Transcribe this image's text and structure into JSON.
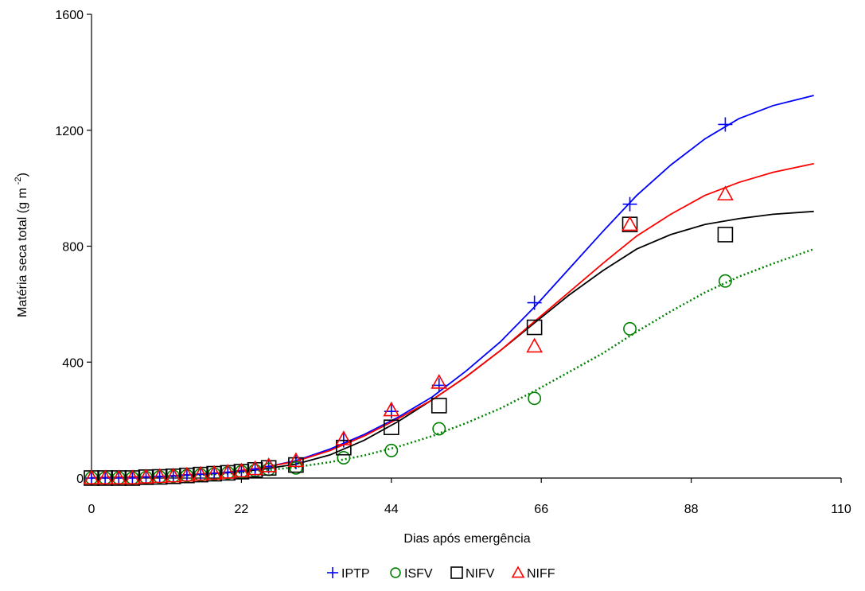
{
  "chart_data": {
    "type": "scatter",
    "xlabel": "Dias após emergência",
    "ylabel": "Matéria seca total (g m",
    "ylabel_sup": "-2",
    "ylabel_close": ")",
    "xlim": [
      0,
      110
    ],
    "ylim": [
      0,
      1600
    ],
    "xticks": [
      0,
      22,
      44,
      66,
      88,
      110
    ],
    "yticks": [
      0,
      400,
      800,
      1200,
      1600
    ],
    "grid": false,
    "legend_position": "bottom-center",
    "series": [
      {
        "name": "IPTP",
        "color": "#0000ff",
        "marker": "plus",
        "line_style": "solid",
        "points": [
          [
            0,
            0
          ],
          [
            2,
            0
          ],
          [
            4,
            0
          ],
          [
            6,
            0
          ],
          [
            8,
            3
          ],
          [
            10,
            5
          ],
          [
            12,
            7
          ],
          [
            14,
            10
          ],
          [
            16,
            13
          ],
          [
            18,
            16
          ],
          [
            20,
            20
          ],
          [
            22,
            24
          ],
          [
            24,
            30
          ],
          [
            26,
            40
          ],
          [
            30,
            55
          ],
          [
            37,
            130
          ],
          [
            44,
            230
          ],
          [
            51,
            320
          ],
          [
            65,
            605
          ],
          [
            79,
            945
          ],
          [
            93,
            1220
          ]
        ],
        "fit": [
          [
            0,
            1
          ],
          [
            10,
            5
          ],
          [
            20,
            20
          ],
          [
            25,
            35
          ],
          [
            30,
            60
          ],
          [
            35,
            100
          ],
          [
            40,
            150
          ],
          [
            45,
            210
          ],
          [
            50,
            280
          ],
          [
            55,
            370
          ],
          [
            60,
            470
          ],
          [
            65,
            590
          ],
          [
            70,
            720
          ],
          [
            75,
            850
          ],
          [
            80,
            975
          ],
          [
            85,
            1080
          ],
          [
            90,
            1170
          ],
          [
            95,
            1240
          ],
          [
            100,
            1285
          ],
          [
            106,
            1320
          ]
        ]
      },
      {
        "name": "ISFV",
        "color": "#008000",
        "marker": "circle",
        "line_style": "dotted",
        "points": [
          [
            0,
            0
          ],
          [
            2,
            0
          ],
          [
            4,
            0
          ],
          [
            6,
            0
          ],
          [
            8,
            2
          ],
          [
            10,
            4
          ],
          [
            12,
            6
          ],
          [
            14,
            8
          ],
          [
            16,
            11
          ],
          [
            18,
            14
          ],
          [
            20,
            18
          ],
          [
            22,
            22
          ],
          [
            24,
            26
          ],
          [
            26,
            30
          ],
          [
            30,
            35
          ],
          [
            37,
            70
          ],
          [
            44,
            95
          ],
          [
            51,
            170
          ],
          [
            65,
            275
          ],
          [
            79,
            515
          ],
          [
            93,
            680
          ]
        ],
        "fit": [
          [
            0,
            0
          ],
          [
            10,
            4
          ],
          [
            20,
            15
          ],
          [
            25,
            25
          ],
          [
            30,
            38
          ],
          [
            35,
            55
          ],
          [
            40,
            78
          ],
          [
            45,
            108
          ],
          [
            50,
            145
          ],
          [
            55,
            190
          ],
          [
            60,
            240
          ],
          [
            65,
            300
          ],
          [
            70,
            365
          ],
          [
            75,
            430
          ],
          [
            80,
            505
          ],
          [
            85,
            575
          ],
          [
            90,
            640
          ],
          [
            95,
            695
          ],
          [
            100,
            740
          ],
          [
            106,
            790
          ]
        ]
      },
      {
        "name": "NIFV",
        "color": "#000000",
        "marker": "square",
        "line_style": "solid",
        "points": [
          [
            0,
            0
          ],
          [
            2,
            0
          ],
          [
            4,
            0
          ],
          [
            6,
            0
          ],
          [
            8,
            3
          ],
          [
            10,
            4
          ],
          [
            12,
            6
          ],
          [
            14,
            9
          ],
          [
            16,
            12
          ],
          [
            18,
            15
          ],
          [
            20,
            18
          ],
          [
            22,
            22
          ],
          [
            24,
            28
          ],
          [
            26,
            35
          ],
          [
            30,
            45
          ],
          [
            37,
            105
          ],
          [
            44,
            175
          ],
          [
            51,
            250
          ],
          [
            65,
            520
          ],
          [
            79,
            875
          ],
          [
            93,
            840
          ]
        ],
        "fit": [
          [
            0,
            1
          ],
          [
            10,
            5
          ],
          [
            20,
            18
          ],
          [
            25,
            30
          ],
          [
            30,
            48
          ],
          [
            35,
            80
          ],
          [
            40,
            130
          ],
          [
            45,
            195
          ],
          [
            50,
            270
          ],
          [
            55,
            350
          ],
          [
            60,
            440
          ],
          [
            65,
            535
          ],
          [
            70,
            630
          ],
          [
            75,
            715
          ],
          [
            80,
            790
          ],
          [
            85,
            840
          ],
          [
            90,
            875
          ],
          [
            95,
            895
          ],
          [
            100,
            910
          ],
          [
            106,
            920
          ]
        ]
      },
      {
        "name": "NIFF",
        "color": "#ff0000",
        "marker": "triangle",
        "line_style": "solid",
        "points": [
          [
            0,
            0
          ],
          [
            2,
            0
          ],
          [
            4,
            0
          ],
          [
            6,
            0
          ],
          [
            8,
            3
          ],
          [
            10,
            5
          ],
          [
            12,
            7
          ],
          [
            14,
            10
          ],
          [
            16,
            13
          ],
          [
            18,
            16
          ],
          [
            20,
            20
          ],
          [
            22,
            24
          ],
          [
            24,
            32
          ],
          [
            26,
            42
          ],
          [
            30,
            60
          ],
          [
            37,
            135
          ],
          [
            44,
            235
          ],
          [
            51,
            330
          ],
          [
            65,
            455
          ],
          [
            79,
            875
          ],
          [
            93,
            980
          ]
        ],
        "fit": [
          [
            0,
            1
          ],
          [
            10,
            5
          ],
          [
            20,
            20
          ],
          [
            25,
            35
          ],
          [
            30,
            58
          ],
          [
            35,
            95
          ],
          [
            40,
            145
          ],
          [
            45,
            205
          ],
          [
            50,
            270
          ],
          [
            55,
            350
          ],
          [
            60,
            440
          ],
          [
            65,
            540
          ],
          [
            70,
            640
          ],
          [
            75,
            740
          ],
          [
            80,
            835
          ],
          [
            85,
            910
          ],
          [
            90,
            975
          ],
          [
            95,
            1020
          ],
          [
            100,
            1055
          ],
          [
            106,
            1085
          ]
        ]
      }
    ]
  }
}
